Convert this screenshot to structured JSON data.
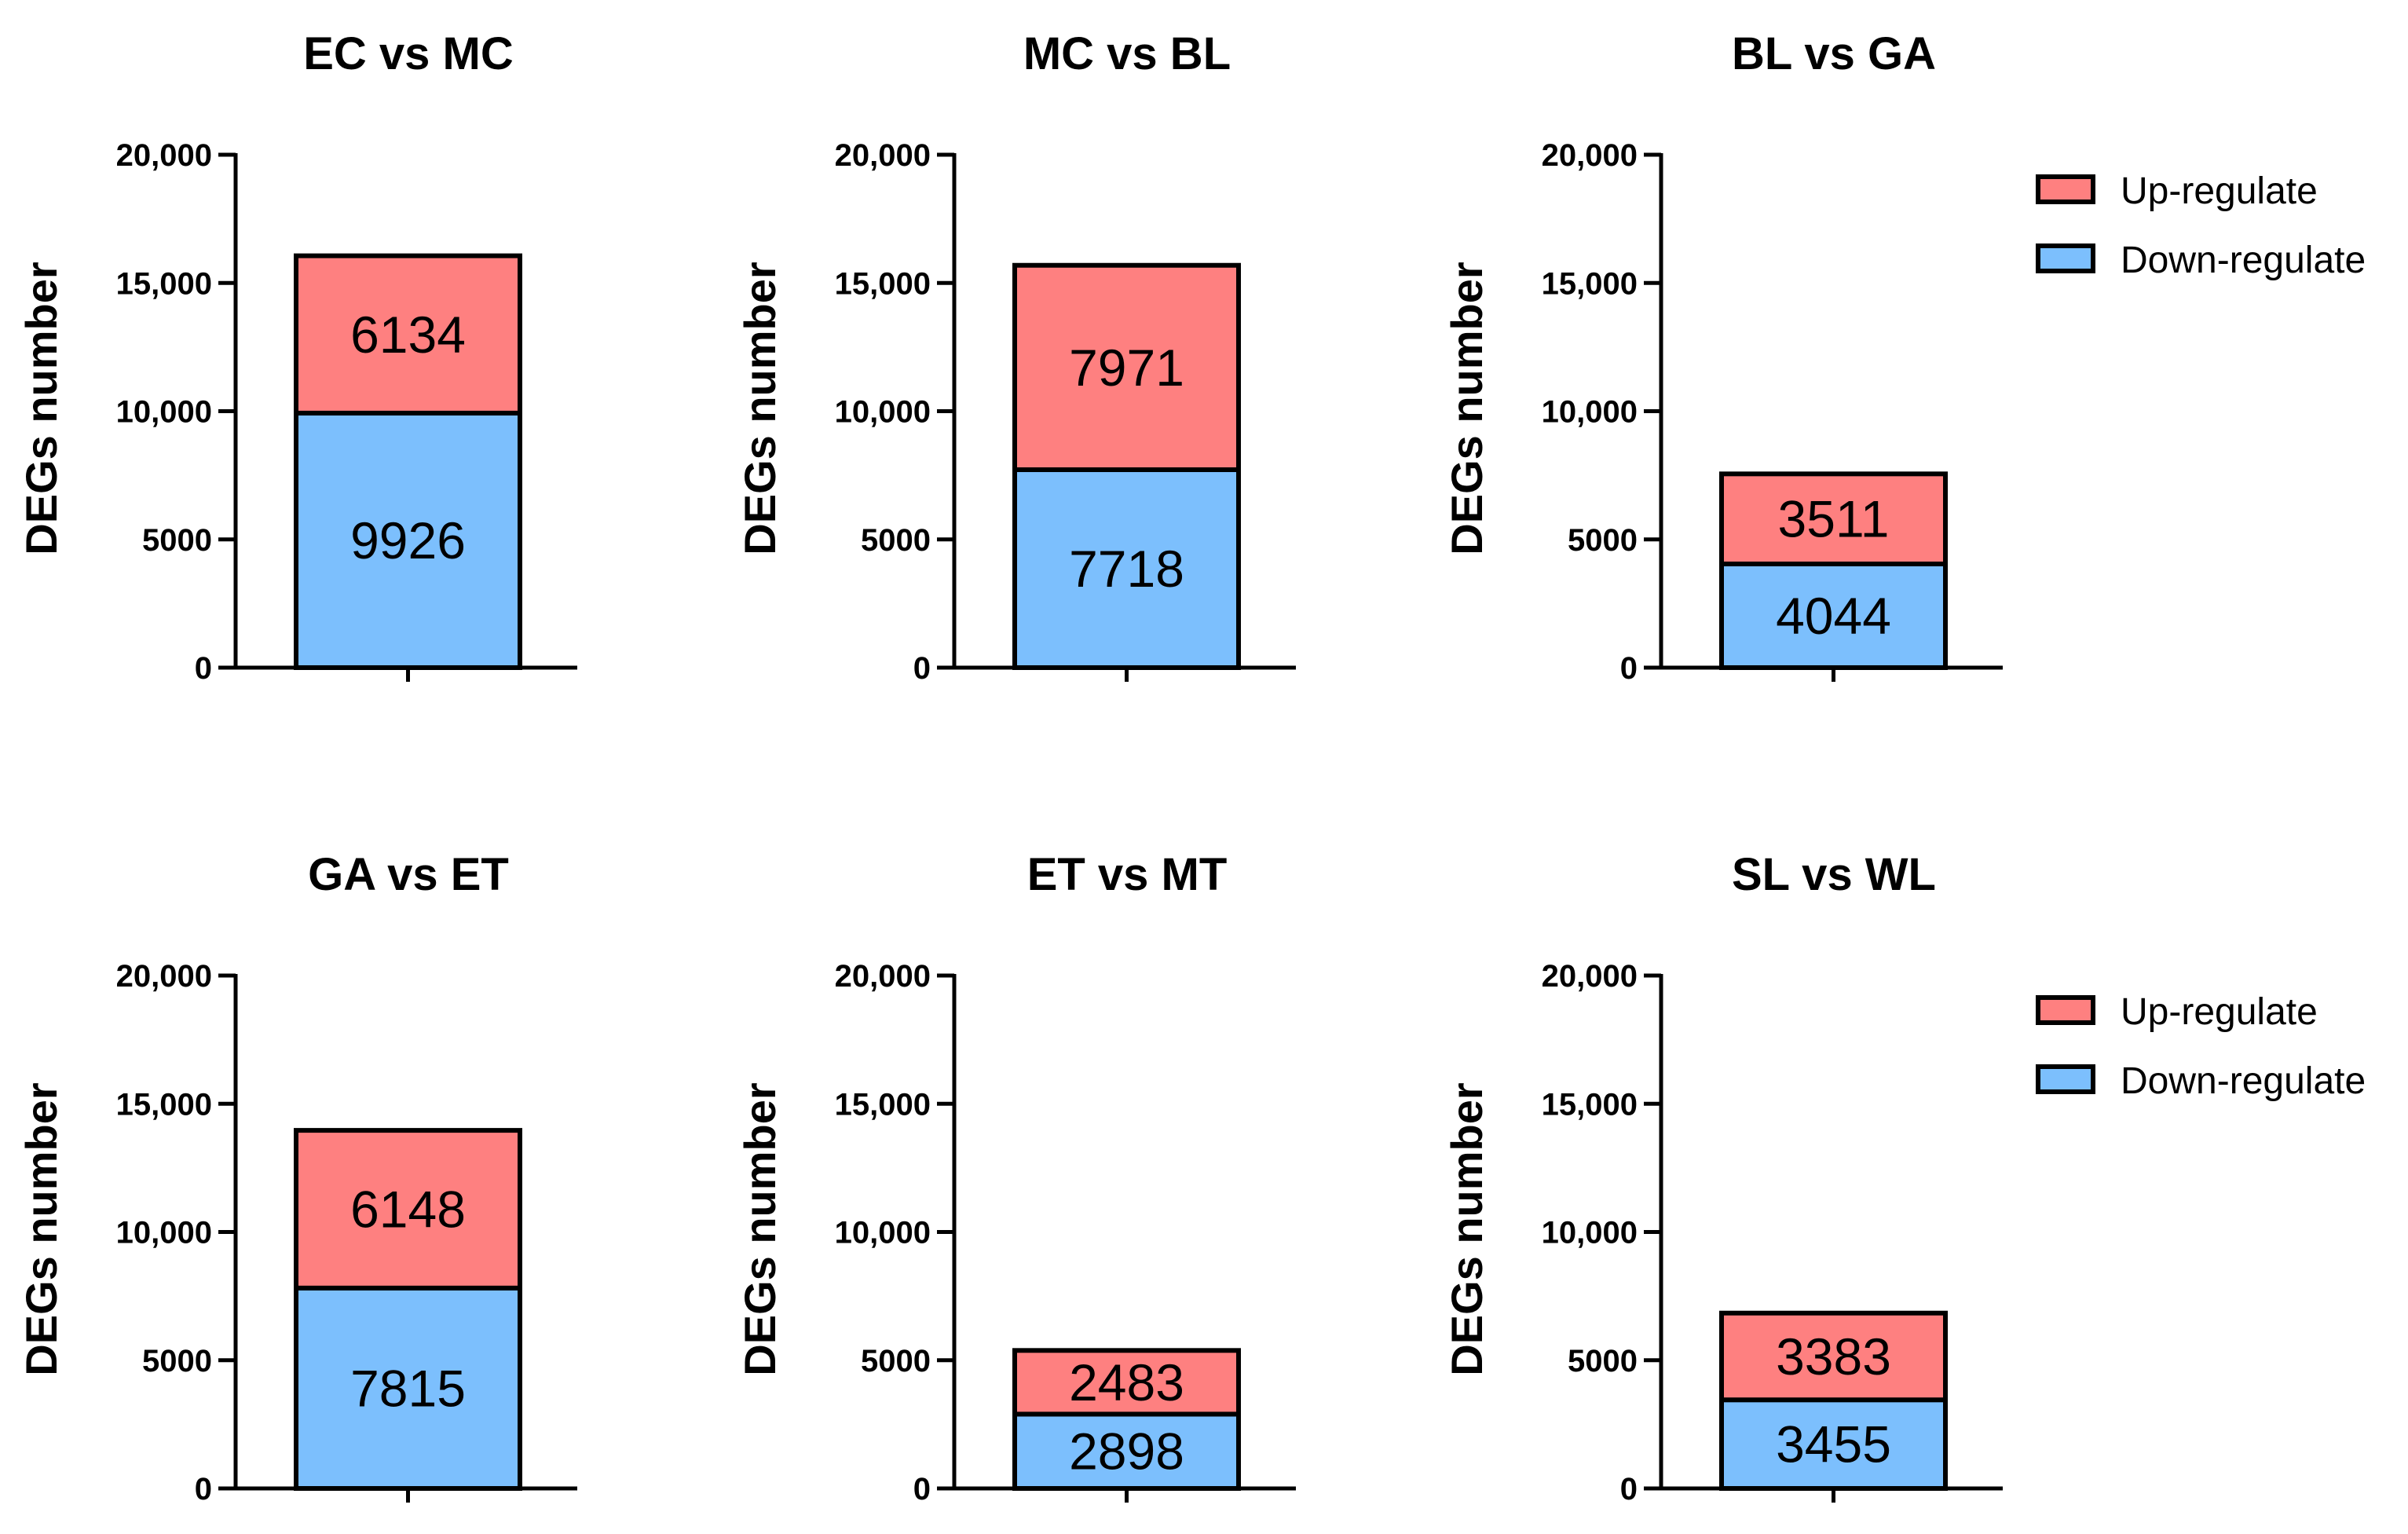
{
  "chart_data": [
    {
      "type": "bar",
      "stacked": true,
      "title": "EC vs MC",
      "ylabel": "DEGs number",
      "ylim": [
        0,
        20000
      ],
      "yticks": [
        "0",
        "5000",
        "10,000",
        "15,000",
        "20,000"
      ],
      "series": [
        {
          "name": "Down-regulate",
          "values": [
            9926
          ],
          "labels": [
            "9926"
          ]
        },
        {
          "name": "Up-regulate",
          "values": [
            6134
          ],
          "labels": [
            "6134"
          ]
        }
      ],
      "legend": null
    },
    {
      "type": "bar",
      "stacked": true,
      "title": "MC vs BL",
      "ylabel": "DEGs number",
      "ylim": [
        0,
        20000
      ],
      "yticks": [
        "0",
        "5000",
        "10,000",
        "15,000",
        "20,000"
      ],
      "series": [
        {
          "name": "Down-regulate",
          "values": [
            7718
          ],
          "labels": [
            "7718"
          ]
        },
        {
          "name": "Up-regulate",
          "values": [
            7971
          ],
          "labels": [
            "7971"
          ]
        }
      ],
      "legend": null
    },
    {
      "type": "bar",
      "stacked": true,
      "title": "BL vs GA",
      "ylabel": "DEGs number",
      "ylim": [
        0,
        20000
      ],
      "yticks": [
        "0",
        "5000",
        "10,000",
        "15,000",
        "20,000"
      ],
      "series": [
        {
          "name": "Down-regulate",
          "values": [
            4044
          ],
          "labels": [
            "4044"
          ]
        },
        {
          "name": "Up-regulate",
          "values": [
            3511
          ],
          "labels": [
            "3511"
          ]
        }
      ],
      "legend": {
        "position": "top-right",
        "entries": [
          "Up-regulate",
          "Down-regulate"
        ]
      }
    },
    {
      "type": "bar",
      "stacked": true,
      "title": "GA vs ET",
      "ylabel": "DEGs number",
      "ylim": [
        0,
        20000
      ],
      "yticks": [
        "0",
        "5000",
        "10,000",
        "15,000",
        "20,000"
      ],
      "series": [
        {
          "name": "Down-regulate",
          "values": [
            7815
          ],
          "labels": [
            "7815"
          ]
        },
        {
          "name": "Up-regulate",
          "values": [
            6148
          ],
          "labels": [
            "6148"
          ]
        }
      ],
      "legend": null
    },
    {
      "type": "bar",
      "stacked": true,
      "title": "ET vs MT",
      "ylabel": "DEGs number",
      "ylim": [
        0,
        20000
      ],
      "yticks": [
        "0",
        "5000",
        "10,000",
        "15,000",
        "20,000"
      ],
      "series": [
        {
          "name": "Down-regulate",
          "values": [
            2898
          ],
          "labels": [
            "2898"
          ]
        },
        {
          "name": "Up-regulate",
          "values": [
            2483
          ],
          "labels": [
            "2483"
          ]
        }
      ],
      "legend": null
    },
    {
      "type": "bar",
      "stacked": true,
      "title": "SL vs WL",
      "ylabel": "DEGs number",
      "ylim": [
        0,
        20000
      ],
      "yticks": [
        "0",
        "5000",
        "10,000",
        "15,000",
        "20,000"
      ],
      "series": [
        {
          "name": "Down-regulate",
          "values": [
            3455
          ],
          "labels": [
            "3455"
          ]
        },
        {
          "name": "Up-regulate",
          "values": [
            3383
          ],
          "labels": [
            "3383"
          ]
        }
      ],
      "legend": {
        "position": "top-right",
        "entries": [
          "Up-regulate",
          "Down-regulate"
        ]
      }
    }
  ],
  "colors": {
    "Up-regulate": "#fe8080",
    "Down-regulate": "#7cbffd",
    "axis": "#000000"
  }
}
